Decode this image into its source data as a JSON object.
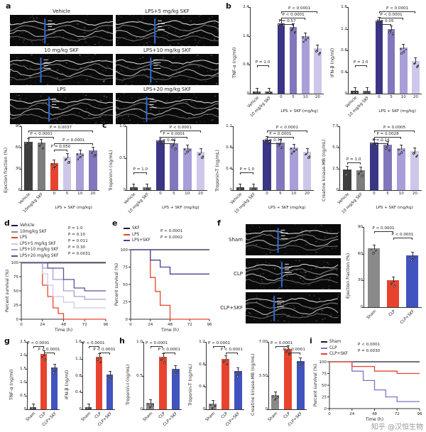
{
  "panels": {
    "a": "a",
    "b": "b",
    "c": "c",
    "d": "d",
    "e": "e",
    "f": "f",
    "g": "g",
    "h": "h",
    "i": "i"
  },
  "panel_a": {
    "echo_titles": [
      "Vehicle",
      "LPS+5 mg/kg SKF",
      "10 mg/kg SKF",
      "LPS+10 mg/kg SKF",
      "LPS",
      "LPS+20 mg/kg SKF"
    ]
  },
  "panel_d": {
    "pvalues": [
      "P = 1.0",
      "P = 0.10",
      "P = 0.011",
      "P = 0.30",
      "P = 0.0031"
    ]
  },
  "panel_e": {
    "pvalues": [
      "P < 0.0001",
      "P = 0.0002"
    ]
  },
  "panel_f": {
    "echo_labels": [
      "Sham",
      "CLP",
      "CLP+SKF"
    ]
  },
  "panel_i": {
    "pvalues": [
      "P < 0.0001",
      "P = 0.0030"
    ]
  },
  "watermark": "知乎 @汉恒生物",
  "chart_data": [
    {
      "id": "ejection-fraction-lps",
      "type": "bar",
      "ylabel": "Ejection fraction (%)",
      "ymax": 90,
      "yticks": [
        "0",
        "30",
        "60",
        "90"
      ],
      "categories": [
        "Vehicle",
        "10mg/kg SKF",
        "0",
        "5",
        "10",
        "20"
      ],
      "values": [
        68,
        67,
        38,
        47,
        52,
        56
      ],
      "colors": [
        "#3d3d3d",
        "#7d7d7d",
        "#e8432e",
        "#cfc7ea",
        "#a99ed8",
        "#8277bd"
      ],
      "group_label": "LPS + SKF (mg/kg)",
      "group_from": 2,
      "group_to": 5,
      "annotations": [
        {
          "text": "P = 0.0037",
          "from": 0,
          "to": 5,
          "level": 0
        },
        {
          "text": "P < 0.0001",
          "from": 0,
          "to": 2,
          "level": 1
        },
        {
          "text": "P < 0.0001",
          "from": 2,
          "to": 5,
          "level": 2
        },
        {
          "text": "P = 0.050",
          "from": 2,
          "to": 3,
          "level": 3
        }
      ]
    },
    {
      "id": "tnf-alpha-lps",
      "type": "bar",
      "ylabel": "TNF-α (ng/ml)",
      "ymax": 2.4,
      "yticks": [
        "0",
        "0.8",
        "1.6",
        "2.4"
      ],
      "categories": [
        "Vehicle",
        "10 mg/kg SKF",
        "0",
        "5",
        "10",
        "20"
      ],
      "values": [
        0.05,
        0.05,
        1.95,
        1.85,
        1.6,
        1.25
      ],
      "colors": [
        "#3d3d3d",
        "#7d7d7d",
        "#3b3585",
        "#8277bd",
        "#a99ed8",
        "#cfc7ea"
      ],
      "group_label": "LPS + SKF (mg/kg)",
      "group_from": 2,
      "group_to": 5,
      "annotations": [
        {
          "text": "P < 0.0001",
          "from": 2,
          "to": 5,
          "level": 0
        },
        {
          "text": "P < 0.0001",
          "from": 2,
          "to": 4,
          "level": 1
        },
        {
          "text": "P = 0.57",
          "from": 2,
          "to": 3,
          "level": 2
        },
        {
          "text": "P = 1.0",
          "from": 0,
          "to": 1,
          "yfrac": 0.62
        }
      ]
    },
    {
      "id": "ifn-beta-lps",
      "type": "bar",
      "ylabel": "IFN-β (ng/ml)",
      "ymax": 1.6,
      "yticks": [
        "0",
        "0.4",
        "0.8",
        "1.2",
        "1.6"
      ],
      "categories": [
        "Vehicle",
        "10 mg/kg SKF",
        "0",
        "5",
        "10",
        "20"
      ],
      "values": [
        0.05,
        0.05,
        1.35,
        1.2,
        0.85,
        0.6
      ],
      "colors": [
        "#3d3d3d",
        "#7d7d7d",
        "#3b3585",
        "#8277bd",
        "#a99ed8",
        "#cfc7ea"
      ],
      "group_label": "LPS + SKF (mg/kg)",
      "group_from": 2,
      "group_to": 5,
      "annotations": [
        {
          "text": "P < 0.0001",
          "from": 2,
          "to": 5,
          "level": 0
        },
        {
          "text": "P < 0.0001",
          "from": 2,
          "to": 4,
          "level": 1
        },
        {
          "text": "P = 0.05",
          "from": 2,
          "to": 3,
          "level": 2
        },
        {
          "text": "P = 1.0",
          "from": 0,
          "to": 1,
          "yfrac": 0.62
        }
      ]
    },
    {
      "id": "troponin-i-lps",
      "type": "bar",
      "ylabel": "Troponin-I (ng/mL)",
      "ymax": 1.0,
      "yticks": [
        "0",
        "0.5",
        "1.0"
      ],
      "categories": [
        "Vehicle",
        "10 mg/kg SKF",
        "0",
        "5",
        "10",
        "20"
      ],
      "values": [
        0.04,
        0.04,
        0.78,
        0.73,
        0.66,
        0.6
      ],
      "colors": [
        "#3d3d3d",
        "#7d7d7d",
        "#3b3585",
        "#8277bd",
        "#a99ed8",
        "#cfc7ea"
      ],
      "group_label": "LPS + SKF (mg/kg)",
      "group_from": 2,
      "group_to": 5,
      "annotations": [
        {
          "text": "P < 0.0001",
          "from": 2,
          "to": 5,
          "level": 0
        },
        {
          "text": "P = 0.0001",
          "from": 2,
          "to": 4,
          "level": 1
        },
        {
          "text": "P = 0.46",
          "from": 2,
          "to": 3,
          "level": 2
        },
        {
          "text": "P = 1.0",
          "from": 0,
          "to": 1,
          "yfrac": 0.66
        }
      ]
    },
    {
      "id": "troponin-t-lps",
      "type": "bar",
      "ylabel": "Troponin-T (ng/mL)",
      "ymax": 1.2,
      "yticks": [
        "0",
        "0.4",
        "0.8",
        "1.2"
      ],
      "categories": [
        "Vehicle",
        "10 mg/kg SKF",
        "0",
        "5",
        "10",
        "20"
      ],
      "values": [
        0.05,
        0.05,
        0.95,
        0.9,
        0.8,
        0.72
      ],
      "colors": [
        "#3d3d3d",
        "#7d7d7d",
        "#3b3585",
        "#8277bd",
        "#a99ed8",
        "#cfc7ea"
      ],
      "group_label": "LPS + SKF (mg/kg)",
      "group_from": 2,
      "group_to": 5,
      "annotations": [
        {
          "text": "P < 0.0001",
          "from": 2,
          "to": 5,
          "level": 0
        },
        {
          "text": "P = 0.0001",
          "from": 2,
          "to": 4,
          "level": 1
        },
        {
          "text": "P = 0.33",
          "from": 2,
          "to": 3,
          "level": 2
        },
        {
          "text": "P = 1.0",
          "from": 0,
          "to": 1,
          "yfrac": 0.66
        }
      ]
    },
    {
      "id": "ck-mb-lps",
      "type": "bar",
      "ylabel": "Creatine kinase-MB (ng/mL)",
      "ymax": 7.5,
      "yticks": [
        "0",
        "2.5",
        "5.0",
        "7.5"
      ],
      "categories": [
        "Vehicle",
        "10 mg/kg SKF",
        "0",
        "5",
        "10",
        "20"
      ],
      "values": [
        2.4,
        2.3,
        5.6,
        5.3,
        4.9,
        4.6
      ],
      "colors": [
        "#3d3d3d",
        "#7d7d7d",
        "#3b3585",
        "#8277bd",
        "#a99ed8",
        "#cfc7ea"
      ],
      "group_label": "LPS + SKF (mg/kg)",
      "group_from": 2,
      "group_to": 5,
      "annotations": [
        {
          "text": "P = 0.0005",
          "from": 2,
          "to": 5,
          "level": 0
        },
        {
          "text": "P = 0.0028",
          "from": 2,
          "to": 4,
          "level": 1
        },
        {
          "text": "P = 0.14",
          "from": 2,
          "to": 3,
          "level": 2
        },
        {
          "text": "P = 1.0",
          "from": 0,
          "to": 1,
          "yfrac": 0.5
        }
      ]
    },
    {
      "id": "survival-lps-doses",
      "type": "line",
      "xlabel": "Time (h)",
      "ylabel": "Percent survival (%)",
      "xticks": [
        0,
        24,
        48,
        72,
        96
      ],
      "yticks": [
        0,
        25,
        50,
        75,
        100
      ],
      "series": [
        {
          "name": "Vehicle",
          "color": "#1c1c3a",
          "dy": 0,
          "points": [
            [
              0,
              100
            ],
            [
              96,
              100
            ]
          ]
        },
        {
          "name": "10mg/kg SKF",
          "color": "#8a8a8a",
          "dy": 1,
          "points": [
            [
              0,
              100
            ],
            [
              96,
              100
            ]
          ]
        },
        {
          "name": "LPS",
          "color": "#e8432e",
          "dy": 0,
          "points": [
            [
              0,
              100
            ],
            [
              18,
              100
            ],
            [
              24,
              60
            ],
            [
              30,
              40
            ],
            [
              36,
              20
            ],
            [
              42,
              10
            ],
            [
              48,
              0
            ],
            [
              96,
              0
            ]
          ]
        },
        {
          "name": "LPS+5 mg/kg SKF",
          "color": "#cfc7ea",
          "dy": 0,
          "points": [
            [
              0,
              100
            ],
            [
              24,
              80
            ],
            [
              30,
              60
            ],
            [
              36,
              40
            ],
            [
              48,
              30
            ],
            [
              60,
              20
            ],
            [
              96,
              20
            ]
          ]
        },
        {
          "name": "LPS+10 mg/kg SKF",
          "color": "#a99ed8",
          "dy": 0,
          "points": [
            [
              0,
              100
            ],
            [
              24,
              90
            ],
            [
              36,
              70
            ],
            [
              48,
              50
            ],
            [
              60,
              40
            ],
            [
              72,
              35
            ],
            [
              96,
              35
            ]
          ]
        },
        {
          "name": "LPS+20 mg/kg SKF",
          "color": "#5a4fa0",
          "dy": 0,
          "points": [
            [
              0,
              100
            ],
            [
              30,
              90
            ],
            [
              48,
              70
            ],
            [
              60,
              55
            ],
            [
              72,
              50
            ],
            [
              96,
              50
            ]
          ]
        }
      ]
    },
    {
      "id": "survival-lps-skf",
      "type": "line",
      "xlabel": "Time (h)",
      "ylabel": "Percent survival (%)",
      "xticks": [
        0,
        24,
        48,
        72,
        96
      ],
      "yticks": [
        0,
        25,
        50,
        75,
        100
      ],
      "series": [
        {
          "name": "SKF",
          "color": "#1c1c3a",
          "dy": 0,
          "points": [
            [
              0,
              100
            ],
            [
              96,
              100
            ]
          ]
        },
        {
          "name": "LPS",
          "color": "#e8432e",
          "dy": 0,
          "points": [
            [
              0,
              100
            ],
            [
              18,
              100
            ],
            [
              24,
              60
            ],
            [
              30,
              40
            ],
            [
              36,
              20
            ],
            [
              48,
              0
            ],
            [
              96,
              0
            ]
          ]
        },
        {
          "name": "LPS+SKF",
          "color": "#44449a",
          "dy": 0,
          "points": [
            [
              0,
              100
            ],
            [
              24,
              85
            ],
            [
              36,
              75
            ],
            [
              48,
              65
            ],
            [
              96,
              65
            ]
          ]
        }
      ]
    },
    {
      "id": "ejection-fraction-clp",
      "type": "bar",
      "ylabel": "Ejection fraction (%)",
      "ymax": 90,
      "yticks": [
        "0",
        "30",
        "60",
        "90"
      ],
      "categories": [
        "Sham",
        "CLP",
        "CLP+SKF"
      ],
      "values": [
        66,
        30,
        58
      ],
      "colors": [
        "#8a8a8a",
        "#e8432e",
        "#4053bf"
      ],
      "annotations": [
        {
          "text": "P < 0.0001",
          "from": 0,
          "to": 1,
          "level": 0
        },
        {
          "text": "P < 0.0001",
          "from": 1,
          "to": 2,
          "level": 1
        }
      ]
    },
    {
      "id": "tnf-alpha-clp",
      "type": "bar",
      "ylabel": "TNF-α (ng/ml)",
      "ymax": 2.5,
      "yticks": [
        "0",
        "0.5",
        "1.0",
        "1.5",
        "2.0",
        "2.5"
      ],
      "categories": [
        "Sham",
        "CLP",
        "CLP+SKF"
      ],
      "values": [
        0.07,
        2.05,
        1.55
      ],
      "colors": [
        "#8a8a8a",
        "#e8432e",
        "#4053bf"
      ],
      "annotations": [
        {
          "text": "P < 0.0001",
          "from": 0,
          "to": 1,
          "level": 0
        },
        {
          "text": "P < 0.0001",
          "from": 1,
          "to": 2,
          "level": 1
        }
      ]
    },
    {
      "id": "ifn-beta-clp",
      "type": "bar",
      "ylabel": "IFN-β (ng/ml)",
      "ymax": 1.6,
      "yticks": [
        "0",
        "0.4",
        "0.8",
        "1.2",
        "1.6"
      ],
      "categories": [
        "Sham",
        "CLP",
        "CLP+SKF"
      ],
      "values": [
        0.05,
        1.25,
        0.82
      ],
      "colors": [
        "#8a8a8a",
        "#e8432e",
        "#4053bf"
      ],
      "annotations": [
        {
          "text": "P < 0.0001",
          "from": 0,
          "to": 1,
          "level": 0
        },
        {
          "text": "P < 0.0001",
          "from": 1,
          "to": 2,
          "level": 1
        }
      ]
    },
    {
      "id": "troponin-i-clp",
      "type": "bar",
      "ylabel": "Troponin-I (ng/mL)",
      "ymax": 1.0,
      "yticks": [
        "0",
        "0.5",
        "1.0"
      ],
      "categories": [
        "Sham",
        "CLP",
        "CLP+SKF"
      ],
      "values": [
        0.1,
        0.78,
        0.6
      ],
      "colors": [
        "#8a8a8a",
        "#e8432e",
        "#4053bf"
      ],
      "annotations": [
        {
          "text": "P < 0.0001",
          "from": 0,
          "to": 1,
          "level": 0
        },
        {
          "text": "P < 0.0001",
          "from": 1,
          "to": 2,
          "level": 1
        }
      ]
    },
    {
      "id": "troponin-t-clp",
      "type": "bar",
      "ylabel": "Troponin-T (ng/mL)",
      "ymax": 1.2,
      "yticks": [
        "0",
        "0.4",
        "0.8",
        "1.2"
      ],
      "categories": [
        "Sham",
        "CLP",
        "CLP+SKF"
      ],
      "values": [
        0.1,
        0.9,
        0.68
      ],
      "colors": [
        "#8a8a8a",
        "#e8432e",
        "#4053bf"
      ],
      "annotations": [
        {
          "text": "P < 0.0001",
          "from": 0,
          "to": 1,
          "level": 0
        },
        {
          "text": "P < 0.0001",
          "from": 1,
          "to": 2,
          "level": 1
        }
      ]
    },
    {
      "id": "ck-mb-clp",
      "type": "bar",
      "ylabel": "Creatine kinase-MB (ng/mL)",
      "ymax": 7.0,
      "yticks": [
        "0",
        "3.50",
        "7.00"
      ],
      "categories": [
        "Sham",
        "CLP",
        "CLP+SKF"
      ],
      "values": [
        1.5,
        6.3,
        5.0
      ],
      "colors": [
        "#8a8a8a",
        "#e8432e",
        "#4053bf"
      ],
      "annotations": [
        {
          "text": "P < 0.0001",
          "from": 0,
          "to": 1,
          "level": 0
        },
        {
          "text": "P < 0.0001",
          "from": 1,
          "to": 2,
          "level": 1
        }
      ]
    },
    {
      "id": "survival-clp",
      "type": "line",
      "xlabel": "Time (h)",
      "ylabel": "Percent survival (%)",
      "xticks": [
        0,
        24,
        48,
        72,
        96
      ],
      "yticks": [
        0,
        25,
        50,
        75,
        100
      ],
      "series": [
        {
          "name": "Sham",
          "color": "#1c1c3a",
          "dy": 0,
          "points": [
            [
              0,
              100
            ],
            [
              96,
              100
            ]
          ]
        },
        {
          "name": "CLP",
          "color": "#7a74c9",
          "dy": 0,
          "points": [
            [
              0,
              100
            ],
            [
              24,
              80
            ],
            [
              36,
              60
            ],
            [
              48,
              40
            ],
            [
              60,
              25
            ],
            [
              72,
              15
            ],
            [
              96,
              15
            ]
          ]
        },
        {
          "name": "CLP+SKF",
          "color": "#e8432e",
          "dy": 0,
          "points": [
            [
              0,
              100
            ],
            [
              24,
              90
            ],
            [
              48,
              80
            ],
            [
              72,
              75
            ],
            [
              96,
              75
            ]
          ]
        }
      ]
    }
  ]
}
